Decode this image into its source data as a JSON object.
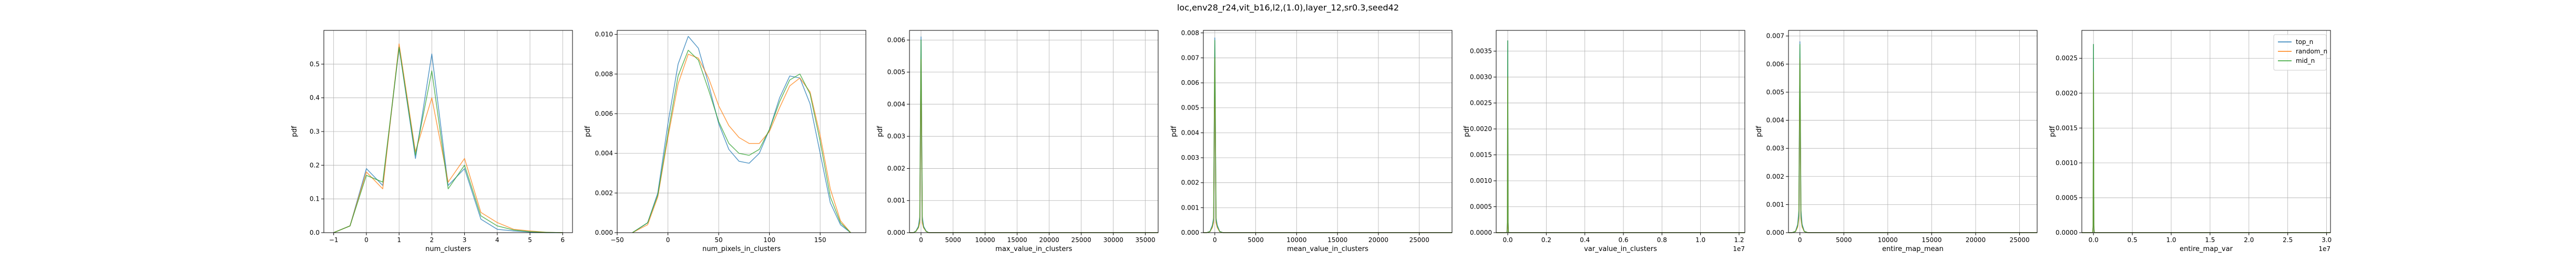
{
  "figure": {
    "suptitle": "loc,env28_r24,vit_b16,l2,(1.0),layer_12,sr0.3,seed42",
    "legend": {
      "entries": [
        {
          "label": "top_n",
          "color": "#1f77b4"
        },
        {
          "label": "random_n",
          "color": "#ff7f0e"
        },
        {
          "label": "mid_n",
          "color": "#2ca02c"
        }
      ],
      "placement": "upper right of last panel"
    }
  },
  "chart_data": [
    {
      "type": "line",
      "xlabel": "num_clusters",
      "ylabel": "pdf",
      "xlim": [
        -1.3,
        6.3
      ],
      "ylim": [
        0,
        0.6
      ],
      "xticks": [
        -1,
        0,
        1,
        2,
        3,
        4,
        5,
        6
      ],
      "xtick_labels": [
        "−1",
        "0",
        "1",
        "2",
        "3",
        "4",
        "5",
        "6"
      ],
      "yticks": [
        0,
        0.1,
        0.2,
        0.3,
        0.4,
        0.5
      ],
      "ytick_labels": [
        "0.0",
        "0.1",
        "0.2",
        "0.3",
        "0.4",
        "0.5"
      ],
      "grid": true,
      "series": [
        {
          "name": "top_n",
          "color": "#1f77b4",
          "x": [
            -1.0,
            -0.5,
            0,
            0.5,
            1,
            1.5,
            2,
            2.5,
            3,
            3.5,
            4,
            4.5,
            5,
            5.5,
            6
          ],
          "y": [
            0,
            0.02,
            0.19,
            0.14,
            0.55,
            0.22,
            0.53,
            0.14,
            0.19,
            0.04,
            0.01,
            0.005,
            0.002,
            0,
            0
          ]
        },
        {
          "name": "random_n",
          "color": "#ff7f0e",
          "x": [
            -1.0,
            -0.5,
            0,
            0.5,
            1,
            1.5,
            2,
            2.5,
            3,
            3.5,
            4,
            4.5,
            5,
            5.5,
            6
          ],
          "y": [
            0,
            0.02,
            0.18,
            0.13,
            0.56,
            0.24,
            0.4,
            0.15,
            0.22,
            0.06,
            0.03,
            0.01,
            0.005,
            0.001,
            0
          ]
        },
        {
          "name": "mid_n",
          "color": "#2ca02c",
          "x": [
            -1.0,
            -0.5,
            0,
            0.5,
            1,
            1.5,
            2,
            2.5,
            3,
            3.5,
            4,
            4.5,
            5,
            5.5,
            6
          ],
          "y": [
            0,
            0.02,
            0.17,
            0.15,
            0.55,
            0.23,
            0.48,
            0.13,
            0.2,
            0.05,
            0.02,
            0.008,
            0.003,
            0.001,
            0
          ]
        }
      ]
    },
    {
      "type": "line",
      "xlabel": "num_pixels_in_clusters",
      "ylabel": "pdf",
      "xlim": [
        -50,
        195
      ],
      "ylim": [
        0,
        0.0102
      ],
      "xticks": [
        -50,
        0,
        50,
        100,
        150
      ],
      "xtick_labels": [
        "−50",
        "0",
        "50",
        "100",
        "150"
      ],
      "yticks": [
        0,
        0.002,
        0.004,
        0.006,
        0.008,
        0.01
      ],
      "ytick_labels": [
        "0.000",
        "0.002",
        "0.004",
        "0.006",
        "0.008",
        "0.010"
      ],
      "grid": true,
      "series": [
        {
          "name": "top_n",
          "color": "#1f77b4",
          "x": [
            -35,
            -20,
            -10,
            0,
            10,
            20,
            30,
            40,
            50,
            60,
            70,
            80,
            90,
            100,
            110,
            120,
            130,
            140,
            150,
            160,
            170,
            180
          ],
          "y": [
            0,
            0.0005,
            0.002,
            0.0055,
            0.0085,
            0.0099,
            0.0093,
            0.0075,
            0.0055,
            0.0042,
            0.0036,
            0.0035,
            0.004,
            0.0052,
            0.0068,
            0.0079,
            0.0078,
            0.0065,
            0.004,
            0.0015,
            0.0004,
            0
          ]
        },
        {
          "name": "random_n",
          "color": "#ff7f0e",
          "x": [
            -35,
            -20,
            -10,
            0,
            10,
            20,
            30,
            40,
            50,
            60,
            70,
            80,
            90,
            100,
            110,
            120,
            130,
            140,
            150,
            160,
            170,
            180
          ],
          "y": [
            0,
            0.0004,
            0.0018,
            0.0048,
            0.0075,
            0.009,
            0.0088,
            0.0078,
            0.0064,
            0.0054,
            0.0048,
            0.0045,
            0.0045,
            0.0051,
            0.0063,
            0.0074,
            0.0078,
            0.0071,
            0.0049,
            0.0022,
            0.0006,
            0
          ]
        },
        {
          "name": "mid_n",
          "color": "#2ca02c",
          "x": [
            -35,
            -20,
            -10,
            0,
            10,
            20,
            30,
            40,
            50,
            60,
            70,
            80,
            90,
            100,
            110,
            120,
            130,
            140,
            150,
            160,
            170,
            180
          ],
          "y": [
            0,
            0.0005,
            0.0019,
            0.005,
            0.0079,
            0.0092,
            0.0087,
            0.0072,
            0.0056,
            0.0045,
            0.004,
            0.0039,
            0.0042,
            0.0052,
            0.0066,
            0.0077,
            0.008,
            0.007,
            0.0046,
            0.0018,
            0.0005,
            0
          ]
        }
      ]
    },
    {
      "type": "line",
      "xlabel": "max_value_in_clusters",
      "ylabel": "pdf",
      "xlim": [
        -1800,
        37000
      ],
      "ylim": [
        0,
        0.0063
      ],
      "xticks": [
        0,
        5000,
        10000,
        15000,
        20000,
        25000,
        30000,
        35000
      ],
      "xtick_labels": [
        "0",
        "5000",
        "10000",
        "15000",
        "20000",
        "25000",
        "30000",
        "35000"
      ],
      "yticks": [
        0,
        0.001,
        0.002,
        0.003,
        0.004,
        0.005,
        0.006
      ],
      "ytick_labels": [
        "0.000",
        "0.001",
        "0.002",
        "0.003",
        "0.004",
        "0.005",
        "0.006"
      ],
      "grid": true,
      "series": [
        {
          "name": "top_n",
          "color": "#1f77b4",
          "x": [
            -1800,
            -1200,
            -800,
            -400,
            -200,
            0,
            200,
            400,
            800,
            1200,
            1800,
            37000
          ],
          "y": [
            0,
            0,
            5e-05,
            0.0002,
            0.0005,
            0.0061,
            0.0005,
            0.0002,
            5e-05,
            0,
            0,
            0
          ]
        },
        {
          "name": "random_n",
          "color": "#ff7f0e",
          "x": [
            -1800,
            -1200,
            -800,
            -400,
            -200,
            0,
            200,
            400,
            800,
            1200,
            1800,
            37000
          ],
          "y": [
            0,
            0,
            4e-05,
            0.00015,
            0.0003,
            0.0054,
            0.0003,
            0.00015,
            4e-05,
            0,
            0,
            0
          ]
        },
        {
          "name": "mid_n",
          "color": "#2ca02c",
          "x": [
            -1800,
            -1200,
            -800,
            -400,
            -200,
            0,
            200,
            400,
            800,
            1200,
            1800,
            37000
          ],
          "y": [
            0,
            0,
            4e-05,
            0.00017,
            0.0004,
            0.006,
            0.0004,
            0.00017,
            4e-05,
            0,
            0,
            0
          ]
        }
      ]
    },
    {
      "type": "line",
      "xlabel": "mean_value_in_clusters",
      "ylabel": "pdf",
      "xlim": [
        -1400,
        29000
      ],
      "ylim": [
        0,
        0.0081
      ],
      "xticks": [
        0,
        5000,
        10000,
        15000,
        20000,
        25000
      ],
      "xtick_labels": [
        "0",
        "5000",
        "10000",
        "15000",
        "20000",
        "25000"
      ],
      "yticks": [
        0,
        0.001,
        0.002,
        0.003,
        0.004,
        0.005,
        0.006,
        0.007,
        0.008
      ],
      "ytick_labels": [
        "0.000",
        "0.001",
        "0.002",
        "0.003",
        "0.004",
        "0.005",
        "0.006",
        "0.007",
        "0.008"
      ],
      "grid": true,
      "series": [
        {
          "name": "top_n",
          "color": "#1f77b4",
          "x": [
            -1400,
            -1000,
            -600,
            -300,
            -150,
            0,
            150,
            300,
            600,
            1000,
            1400,
            29000
          ],
          "y": [
            0,
            0,
            5e-05,
            0.0003,
            0.0006,
            0.0078,
            0.0006,
            0.0003,
            5e-05,
            0,
            0,
            0
          ]
        },
        {
          "name": "random_n",
          "color": "#ff7f0e",
          "x": [
            -1400,
            -1000,
            -600,
            -300,
            -150,
            0,
            150,
            300,
            600,
            1000,
            1400,
            29000
          ],
          "y": [
            0,
            0,
            4e-05,
            0.0002,
            0.0004,
            0.007,
            0.0004,
            0.0002,
            4e-05,
            0,
            0,
            0
          ]
        },
        {
          "name": "mid_n",
          "color": "#2ca02c",
          "x": [
            -1400,
            -1000,
            -600,
            -300,
            -150,
            0,
            150,
            300,
            600,
            1000,
            1400,
            29000
          ],
          "y": [
            0,
            0,
            4e-05,
            0.00025,
            0.0005,
            0.0077,
            0.0005,
            0.00025,
            4e-05,
            0,
            0,
            0
          ]
        }
      ]
    },
    {
      "type": "line",
      "xlabel": "var_value_in_clusters",
      "ylabel": "pdf",
      "offset_label": "1e7",
      "xlim": [
        -0.06,
        1.23
      ],
      "ylim": [
        0,
        0.0039
      ],
      "xticks": [
        0,
        0.2,
        0.4,
        0.6,
        0.8,
        1.0,
        1.2
      ],
      "xtick_labels": [
        "0.0",
        "0.2",
        "0.4",
        "0.6",
        "0.8",
        "1.0",
        "1.2"
      ],
      "yticks": [
        0,
        0.0005,
        0.001,
        0.0015,
        0.002,
        0.0025,
        0.003,
        0.0035
      ],
      "ytick_labels": [
        "0.0000",
        "0.0005",
        "0.0010",
        "0.0015",
        "0.0020",
        "0.0025",
        "0.0030",
        "0.0035"
      ],
      "grid": true,
      "series": [
        {
          "name": "top_n",
          "color": "#1f77b4",
          "x": [
            -0.06,
            -0.004,
            -0.002,
            0,
            0.002,
            0.004,
            1.23
          ],
          "y": [
            0,
            0,
            0.0002,
            0.0037,
            0.0002,
            0,
            0
          ]
        },
        {
          "name": "random_n",
          "color": "#ff7f0e",
          "x": [
            -0.06,
            -0.004,
            -0.002,
            0,
            0.002,
            0.004,
            1.23
          ],
          "y": [
            0,
            0,
            0.0001,
            0.003,
            0.0001,
            0,
            0
          ]
        },
        {
          "name": "mid_n",
          "color": "#2ca02c",
          "x": [
            -0.06,
            -0.004,
            -0.002,
            0,
            0.002,
            0.004,
            1.23
          ],
          "y": [
            0,
            0,
            0.0002,
            0.0037,
            0.0002,
            0,
            0
          ]
        }
      ]
    },
    {
      "type": "line",
      "xlabel": "entire_map_mean",
      "ylabel": "pdf",
      "xlim": [
        -1300,
        27000
      ],
      "ylim": [
        0,
        0.0072
      ],
      "xticks": [
        0,
        5000,
        10000,
        15000,
        20000,
        25000
      ],
      "xtick_labels": [
        "0",
        "5000",
        "10000",
        "15000",
        "20000",
        "25000"
      ],
      "yticks": [
        0,
        0.001,
        0.002,
        0.003,
        0.004,
        0.005,
        0.006,
        0.007
      ],
      "ytick_labels": [
        "0.000",
        "0.001",
        "0.002",
        "0.003",
        "0.004",
        "0.005",
        "0.006",
        "0.007"
      ],
      "grid": true,
      "series": [
        {
          "name": "top_n",
          "color": "#1f77b4",
          "x": [
            -1300,
            -900,
            -500,
            -250,
            -120,
            0,
            120,
            250,
            500,
            900,
            1300,
            27000
          ],
          "y": [
            0,
            0,
            5e-05,
            0.0003,
            0.0008,
            0.0068,
            0.0008,
            0.0003,
            5e-05,
            0,
            0,
            0
          ]
        },
        {
          "name": "random_n",
          "color": "#ff7f0e",
          "x": [
            -1300,
            -900,
            -500,
            -250,
            -120,
            0,
            120,
            250,
            500,
            900,
            1300,
            27000
          ],
          "y": [
            0,
            0,
            4e-05,
            0.0002,
            0.0005,
            0.0062,
            0.0005,
            0.0002,
            4e-05,
            0,
            0,
            0
          ]
        },
        {
          "name": "mid_n",
          "color": "#2ca02c",
          "x": [
            -1300,
            -900,
            -500,
            -250,
            -120,
            0,
            120,
            250,
            500,
            900,
            1300,
            27000
          ],
          "y": [
            0,
            0,
            4e-05,
            0.00025,
            0.0006,
            0.0067,
            0.0006,
            0.00025,
            4e-05,
            0,
            0,
            0
          ]
        }
      ]
    },
    {
      "type": "line",
      "xlabel": "entire_map_var",
      "ylabel": "pdf",
      "offset_label": "1e7",
      "xlim": [
        -0.15,
        3.05
      ],
      "ylim": [
        0,
        0.0029
      ],
      "xticks": [
        0,
        0.5,
        1.0,
        1.5,
        2.0,
        2.5,
        3.0
      ],
      "xtick_labels": [
        "0.0",
        "0.5",
        "1.0",
        "1.5",
        "2.0",
        "2.5",
        "3.0"
      ],
      "yticks": [
        0,
        0.0005,
        0.001,
        0.0015,
        0.002,
        0.0025
      ],
      "ytick_labels": [
        "0.0000",
        "0.0005",
        "0.0010",
        "0.0015",
        "0.0020",
        "0.0025"
      ],
      "grid": true,
      "series": [
        {
          "name": "top_n",
          "color": "#1f77b4",
          "x": [
            -0.15,
            -0.01,
            -0.005,
            0,
            0.005,
            0.01,
            3.05
          ],
          "y": [
            0,
            0,
            0.0001,
            0.0027,
            0.0001,
            0,
            0
          ]
        },
        {
          "name": "random_n",
          "color": "#ff7f0e",
          "x": [
            -0.15,
            -0.01,
            -0.005,
            0,
            0.005,
            0.01,
            3.05
          ],
          "y": [
            0,
            0,
            0.0001,
            0.0023,
            0.0001,
            0,
            0
          ]
        },
        {
          "name": "mid_n",
          "color": "#2ca02c",
          "x": [
            -0.15,
            -0.01,
            -0.005,
            0,
            0.005,
            0.01,
            3.05
          ],
          "y": [
            0,
            0,
            0.0001,
            0.0027,
            0.0001,
            0,
            0
          ]
        }
      ]
    }
  ]
}
